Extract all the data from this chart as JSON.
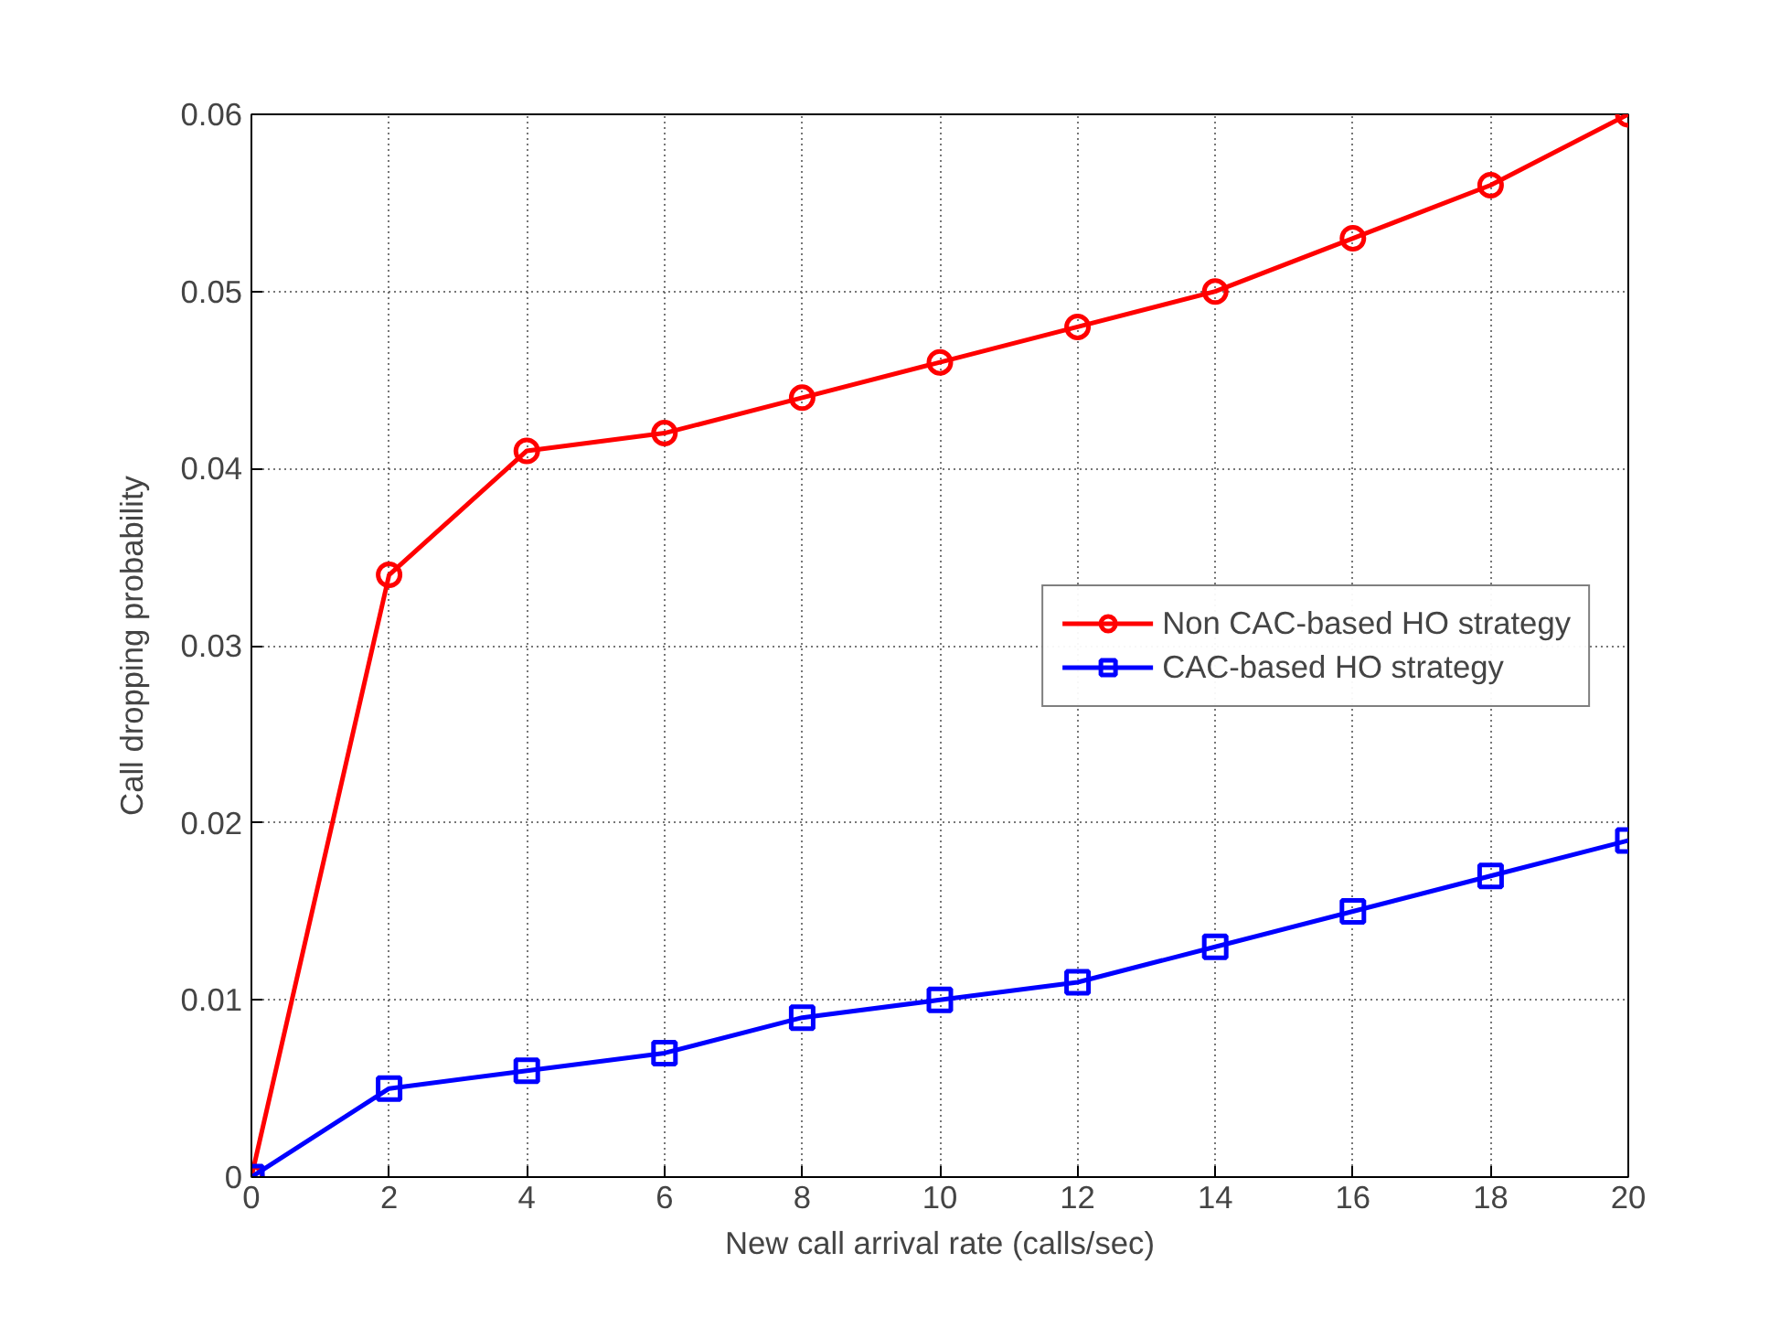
{
  "chart_data": {
    "type": "line",
    "xlabel": "New call arrival rate (calls/sec)",
    "ylabel": "Call dropping probability",
    "x": [
      0,
      2,
      4,
      6,
      8,
      10,
      12,
      14,
      16,
      18,
      20
    ],
    "series": [
      {
        "name": "Non CAC-based HO strategy",
        "color": "#ff0000",
        "marker": "circle",
        "values": [
          0,
          0.034,
          0.041,
          0.042,
          0.044,
          0.046,
          0.048,
          0.05,
          0.053,
          0.056,
          0.06
        ]
      },
      {
        "name": "CAC-based HO strategy",
        "color": "#0000ff",
        "marker": "square",
        "values": [
          0,
          0.005,
          0.006,
          0.007,
          0.009,
          0.01,
          0.011,
          0.013,
          0.015,
          0.017,
          0.019
        ]
      }
    ],
    "xlim": [
      0,
      20
    ],
    "xticks": [
      0,
      2,
      4,
      6,
      8,
      10,
      12,
      14,
      16,
      18,
      20
    ],
    "ylim": [
      0,
      0.06
    ],
    "yticks": [
      0,
      0.01,
      0.02,
      0.03,
      0.04,
      0.05,
      0.06
    ],
    "grid": true,
    "legend": "right",
    "line_style": "solid"
  }
}
